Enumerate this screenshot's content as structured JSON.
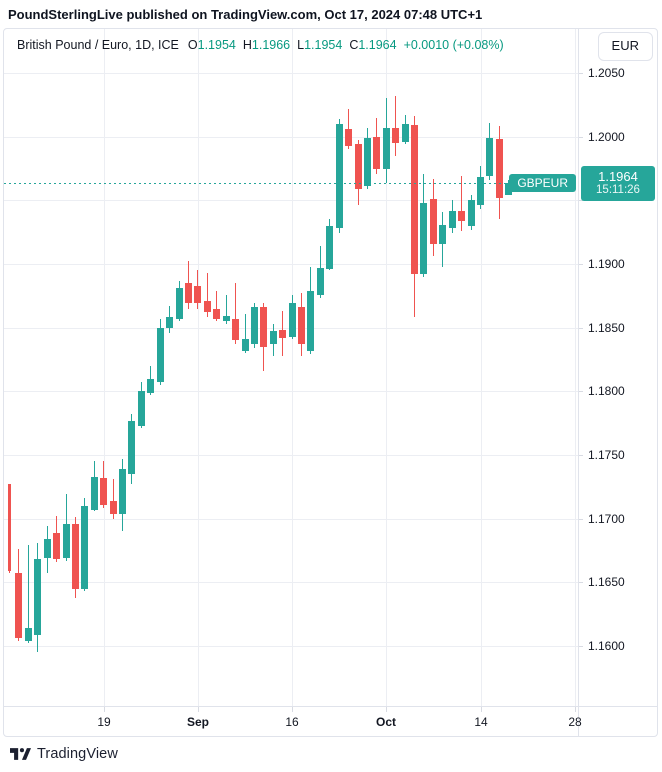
{
  "attribution": "PoundSterlingLive published on TradingView.com, Oct 17, 2024 07:48 UTC+1",
  "header": {
    "symbol_title": "British Pound / Euro, 1D, ICE",
    "ohlc": [
      {
        "label": "O",
        "value": "1.1954"
      },
      {
        "label": "H",
        "value": "1.1966"
      },
      {
        "label": "L",
        "value": "1.1954"
      },
      {
        "label": "C",
        "value": "1.1964"
      }
    ],
    "change": "+0.0010 (+0.08%)",
    "currency_button": "EUR"
  },
  "footer": {
    "brand": "TradingView"
  },
  "chart_data": {
    "type": "candlestick",
    "symbol": "GBPEUR",
    "timeframe": "1D",
    "colors": {
      "up": "#26a69a",
      "down": "#ef5350",
      "value_text": "#089981"
    },
    "y_axis": {
      "ref_high": 1.205,
      "ref_low": 1.16,
      "gridlines": [
        {
          "price": 1.205,
          "label": "1.2050"
        },
        {
          "price": 1.2,
          "label": "1.2000"
        },
        {
          "price": 1.195,
          "label": ""
        },
        {
          "price": 1.19,
          "label": "1.1900"
        },
        {
          "price": 1.185,
          "label": "1.1850"
        },
        {
          "price": 1.18,
          "label": "1.1800"
        },
        {
          "price": 1.175,
          "label": "1.1750"
        },
        {
          "price": 1.17,
          "label": "1.1700"
        },
        {
          "price": 1.165,
          "label": "1.1650"
        },
        {
          "price": 1.16,
          "label": "1.1600"
        }
      ]
    },
    "x_axis": {
      "ticks": [
        {
          "index": 10,
          "label": "19",
          "bold": false
        },
        {
          "index": 20,
          "label": "Sep",
          "bold": true
        },
        {
          "index": 30,
          "label": "16",
          "bold": false
        },
        {
          "index": 40,
          "label": "Oct",
          "bold": true
        },
        {
          "index": 50,
          "label": "14",
          "bold": false
        },
        {
          "index": 60,
          "label": "28",
          "bold": false
        }
      ]
    },
    "last_price": {
      "price": 1.1964,
      "display": "1.1964",
      "time": "15:11:26",
      "tag": "GBPEUR"
    },
    "candles": [
      [
        1.1727,
        1.1727,
        1.1657,
        1.1659
      ],
      [
        1.1657,
        1.1676,
        1.1604,
        1.1606
      ],
      [
        1.1604,
        1.1679,
        1.1602,
        1.1614
      ],
      [
        1.1609,
        1.1681,
        1.1595,
        1.1668
      ],
      [
        1.1669,
        1.1694,
        1.1657,
        1.1684
      ],
      [
        1.1689,
        1.1702,
        1.1666,
        1.1668
      ],
      [
        1.1669,
        1.1719,
        1.1667,
        1.1696
      ],
      [
        1.1696,
        1.1701,
        1.1638,
        1.1645
      ],
      [
        1.1645,
        1.1716,
        1.1643,
        1.171
      ],
      [
        1.1707,
        1.1745,
        1.1706,
        1.1733
      ],
      [
        1.1732,
        1.1745,
        1.1708,
        1.1711
      ],
      [
        1.1714,
        1.1731,
        1.17,
        1.1704
      ],
      [
        1.1704,
        1.1747,
        1.169,
        1.1739
      ],
      [
        1.1735,
        1.1782,
        1.1727,
        1.1777
      ],
      [
        1.1773,
        1.1807,
        1.1771,
        1.18
      ],
      [
        1.1799,
        1.182,
        1.1797,
        1.181
      ],
      [
        1.1807,
        1.1857,
        1.1805,
        1.185
      ],
      [
        1.185,
        1.1867,
        1.1846,
        1.1858
      ],
      [
        1.1857,
        1.1887,
        1.1855,
        1.1881
      ],
      [
        1.1885,
        1.1902,
        1.1865,
        1.1869
      ],
      [
        1.1883,
        1.1895,
        1.1865,
        1.1869
      ],
      [
        1.1871,
        1.1893,
        1.1858,
        1.1862
      ],
      [
        1.1865,
        1.1879,
        1.1855,
        1.1857
      ],
      [
        1.1855,
        1.1876,
        1.1853,
        1.1859
      ],
      [
        1.1857,
        1.1885,
        1.1837,
        1.184
      ],
      [
        1.1832,
        1.1861,
        1.183,
        1.1841
      ],
      [
        1.1837,
        1.1869,
        1.1834,
        1.1866
      ],
      [
        1.1866,
        1.1869,
        1.1816,
        1.1835
      ],
      [
        1.1837,
        1.1853,
        1.1828,
        1.1847
      ],
      [
        1.1848,
        1.1863,
        1.1828,
        1.1842
      ],
      [
        1.1843,
        1.1876,
        1.1841,
        1.1869
      ],
      [
        1.1866,
        1.1877,
        1.1828,
        1.1837
      ],
      [
        1.1832,
        1.1898,
        1.1829,
        1.1879
      ],
      [
        1.1876,
        1.1914,
        1.1873,
        1.1897
      ],
      [
        1.1896,
        1.1935,
        1.1895,
        1.193
      ],
      [
        1.1928,
        1.2014,
        1.1924,
        1.201
      ],
      [
        1.2006,
        1.2022,
        1.199,
        1.1993
      ],
      [
        1.1994,
        1.1997,
        1.1946,
        1.1959
      ],
      [
        1.1961,
        1.2007,
        1.1959,
        1.1999
      ],
      [
        1.2,
        1.2015,
        1.1971,
        1.1975
      ],
      [
        1.1975,
        1.203,
        1.1964,
        1.2007
      ],
      [
        1.2007,
        1.2032,
        1.1985,
        1.1995
      ],
      [
        1.1996,
        1.2017,
        1.1994,
        1.201
      ],
      [
        1.2009,
        1.2016,
        1.1858,
        1.1892
      ],
      [
        1.1892,
        1.1971,
        1.189,
        1.1948
      ],
      [
        1.1951,
        1.1967,
        1.1906,
        1.1916
      ],
      [
        1.1916,
        1.1941,
        1.1898,
        1.1931
      ],
      [
        1.1928,
        1.195,
        1.1924,
        1.1942
      ],
      [
        1.1942,
        1.1969,
        1.1926,
        1.1934
      ],
      [
        1.193,
        1.1954,
        1.1927,
        1.195
      ],
      [
        1.1946,
        1.1977,
        1.1943,
        1.1968
      ],
      [
        1.1969,
        1.2011,
        1.1966,
        1.1999
      ],
      [
        1.1998,
        1.2008,
        1.1935,
        1.1952
      ],
      [
        1.1954,
        1.1966,
        1.1954,
        1.1964
      ]
    ]
  }
}
